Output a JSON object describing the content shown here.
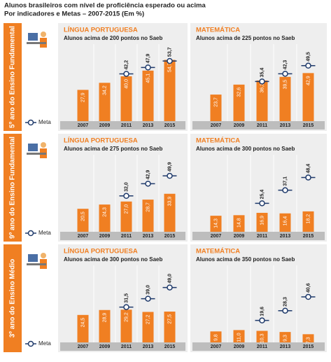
{
  "header": {
    "title": "Alunos brasileiros com nível de proficiência esperado ou acima",
    "subtitle": "Por indicadores e Metas – 2007-2015 (Em %)"
  },
  "rows": [
    {
      "label": "5º ano do Ensino Fundamental",
      "legend": "Meta",
      "panels": [
        {
          "type": "bar",
          "title": "LÍNGUA PORTUGUESA",
          "subtitle": "Alunos acima de 200 pontos no Saeb",
          "categories": [
            "2007",
            "2009",
            "2011",
            "2013",
            "2015"
          ],
          "values": [
            27.9,
            34.2,
            40.0,
            45.1,
            54.7
          ],
          "value_labels": [
            "27,9",
            "34,2",
            "40,0",
            "45,1",
            "54,7"
          ],
          "meta": [
            null,
            null,
            42.2,
            47.9,
            53.7
          ],
          "meta_labels": [
            null,
            null,
            "42,2",
            "47,9",
            "53,7"
          ]
        },
        {
          "type": "bar",
          "title": "MATEMÁTICA",
          "subtitle": "Alunos acima de 225 pontos no Saeb",
          "categories": [
            "2007",
            "2009",
            "2011",
            "2013",
            "2015"
          ],
          "values": [
            23.7,
            32.6,
            36.3,
            39.5,
            42.9
          ],
          "value_labels": [
            "23,7",
            "32,6",
            "36,3",
            "39,5",
            "42,9"
          ],
          "meta": [
            null,
            null,
            35.4,
            42.3,
            49.5
          ],
          "meta_labels": [
            null,
            null,
            "35,4",
            "42,3",
            "49,5"
          ]
        }
      ]
    },
    {
      "label": "9º ano do Ensino Fundamental",
      "legend": "Meta",
      "panels": [
        {
          "type": "bar",
          "title": "LÍNGUA PORTUGUESA",
          "subtitle": "Alunos acima de 275 pontos no Saeb",
          "categories": [
            "2007",
            "2009",
            "2011",
            "2013",
            "2015"
          ],
          "values": [
            20.5,
            24.3,
            27.0,
            28.7,
            33.9
          ],
          "value_labels": [
            "20,5",
            "24,3",
            "27,0",
            "28,7",
            "33,9"
          ],
          "meta": [
            null,
            null,
            32.0,
            42.9,
            49.9
          ],
          "meta_labels": [
            null,
            null,
            "32,0",
            "42,9",
            "49,9"
          ]
        },
        {
          "type": "bar",
          "title": "MATEMÁTICA",
          "subtitle": "Alunos acima de 300 pontos no Saeb",
          "categories": [
            "2007",
            "2009",
            "2011",
            "2013",
            "2015"
          ],
          "values": [
            14.3,
            14.8,
            16.9,
            16.4,
            18.2
          ],
          "value_labels": [
            "14,3",
            "14,8",
            "16,9",
            "16,4",
            "18,2"
          ],
          "meta": [
            null,
            null,
            25.4,
            37.1,
            48.4
          ],
          "meta_labels": [
            null,
            null,
            "25,4",
            "37,1",
            "48,4"
          ]
        }
      ]
    },
    {
      "label": "3º ano do Ensino Médio",
      "legend": "Meta",
      "panels": [
        {
          "type": "bar",
          "title": "LÍNGUA PORTUGUESA",
          "subtitle": "Alunos acima de 300 pontos no Saeb",
          "categories": [
            "2007",
            "2009",
            "2011",
            "2013",
            "2015"
          ],
          "values": [
            24.5,
            28.9,
            29.2,
            27.2,
            27.5
          ],
          "value_labels": [
            "24,5",
            "28,9",
            "29,2",
            "27,2",
            "27,5"
          ],
          "meta": [
            null,
            null,
            31.5,
            39.0,
            49.0
          ],
          "meta_labels": [
            null,
            null,
            "31,5",
            "39,0",
            "49,0"
          ]
        },
        {
          "type": "bar",
          "title": "MATEMÁTICA",
          "subtitle": "Alunos acima de 350 pontos no Saeb",
          "categories": [
            "2007",
            "2009",
            "2011",
            "2013",
            "2015"
          ],
          "values": [
            9.8,
            11.0,
            10.3,
            9.3,
            7.3
          ],
          "value_labels": [
            "9,8",
            "11,0",
            "10,3",
            "9,3",
            "7,3"
          ],
          "meta": [
            null,
            null,
            19.6,
            28.3,
            40.6
          ],
          "meta_labels": [
            null,
            null,
            "19,6",
            "28,3",
            "40,6"
          ]
        }
      ]
    }
  ]
}
